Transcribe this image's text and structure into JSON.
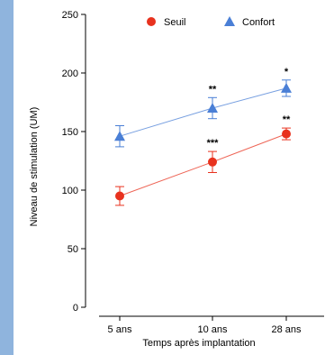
{
  "chart_data": {
    "type": "line",
    "xlabel": "Temps après implantation",
    "ylabel": "Niveau de stimulation (UM)",
    "categories": [
      "5 ans",
      "10 ans",
      "28 ans"
    ],
    "ylim": [
      0,
      250
    ],
    "yticks": [
      0,
      50,
      100,
      150,
      200,
      250
    ],
    "legend_position": "top",
    "series": [
      {
        "name": "Seuil",
        "marker": "circle",
        "color": "#e8321e",
        "values": [
          95,
          124,
          148
        ],
        "error": [
          8,
          9,
          5
        ],
        "significance": [
          "",
          "***",
          "**"
        ]
      },
      {
        "name": "Confort",
        "marker": "triangle",
        "color": "#4a7fd6",
        "values": [
          146,
          170,
          187
        ],
        "error": [
          9,
          9,
          7
        ],
        "significance": [
          "",
          "**",
          "*"
        ]
      }
    ]
  }
}
